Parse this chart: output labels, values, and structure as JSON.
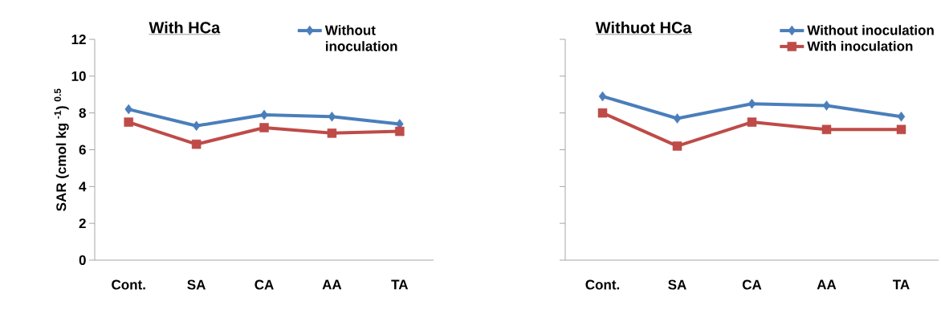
{
  "chart_data": [
    {
      "type": "line",
      "title": "With HCa",
      "ylabel": "SAR (cmol kg $^{-1}$) $^{0.5}$",
      "categories": [
        "Cont.",
        "SA",
        "CA",
        "AA",
        "TA"
      ],
      "series": [
        {
          "name": "Without inoculation",
          "color": "#4a7ebb",
          "marker": "diamond",
          "values": [
            8.2,
            7.3,
            7.9,
            7.8,
            7.4
          ]
        },
        {
          "color": "#be4b48",
          "marker": "square",
          "values": [
            7.5,
            6.3,
            7.2,
            6.9,
            7.0
          ]
        }
      ],
      "ylim": [
        0,
        12
      ],
      "yticks": [
        0,
        2,
        4,
        6,
        8,
        10,
        12
      ],
      "legend": "top right"
    },
    {
      "type": "line",
      "title": "Withuot HCa",
      "categories": [
        "Cont.",
        "SA",
        "CA",
        "AA",
        "TA"
      ],
      "series": [
        {
          "name": "Without inoculation",
          "color": "#4a7ebb",
          "marker": "diamond",
          "values": [
            8.9,
            7.7,
            8.5,
            8.4,
            7.8
          ]
        },
        {
          "name": "With inoculation",
          "color": "#be4b48",
          "marker": "square",
          "values": [
            8.0,
            6.2,
            7.5,
            7.1,
            7.1
          ]
        }
      ],
      "ylim": [
        0,
        12
      ],
      "yticks": [
        {
          "value": 0,
          "label": null
        },
        {
          "value": 2,
          "label": null
        },
        {
          "value": 4,
          "label": null
        },
        {
          "value": 6,
          "label": null
        },
        {
          "value": 8,
          "label": null
        },
        {
          "value": 10,
          "label": null
        },
        {
          "value": 12,
          "label": null
        }
      ],
      "legend": "top right",
      "tick_labels": "x"
    }
  ]
}
